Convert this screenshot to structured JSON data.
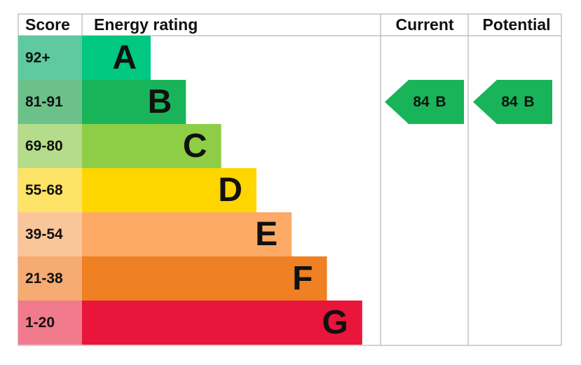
{
  "header": {
    "score": "Score",
    "energy_rating": "Energy rating",
    "current": "Current",
    "potential": "Potential"
  },
  "bands": [
    {
      "score": "92+",
      "letter": "A",
      "score_color": "#5fc99f",
      "bar_color": "#00c781"
    },
    {
      "score": "81-91",
      "letter": "B",
      "score_color": "#6cc18a",
      "bar_color": "#19b459"
    },
    {
      "score": "69-80",
      "letter": "C",
      "score_color": "#b5dc8a",
      "bar_color": "#8dce46"
    },
    {
      "score": "55-68",
      "letter": "D",
      "score_color": "#fde467",
      "bar_color": "#ffd500"
    },
    {
      "score": "39-54",
      "letter": "E",
      "score_color": "#fbc59a",
      "bar_color": "#fcaa65"
    },
    {
      "score": "21-38",
      "letter": "F",
      "score_color": "#f5ab72",
      "bar_color": "#ef8023"
    },
    {
      "score": "1-20",
      "letter": "G",
      "score_color": "#f17a8c",
      "bar_color": "#e9153b"
    }
  ],
  "current": {
    "score": 84,
    "band": "B",
    "color": "#19b459"
  },
  "potential": {
    "score": 84,
    "band": "B",
    "color": "#19b459"
  }
}
